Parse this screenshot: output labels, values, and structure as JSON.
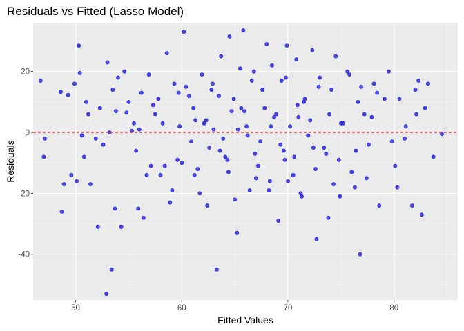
{
  "chart_data": {
    "type": "scatter",
    "title": "Residuals vs Fitted (Lasso Model)",
    "xlabel": "Fitted Values",
    "ylabel": "Residuals",
    "xlim": [
      46,
      86
    ],
    "ylim": [
      -55,
      36
    ],
    "x_ticks": [
      50,
      60,
      70,
      80
    ],
    "y_ticks": [
      -40,
      -20,
      0,
      20
    ],
    "grid": true,
    "reference_line": {
      "y": 0,
      "style": "dashed",
      "color": "#e41a1c"
    },
    "point_color": "#0000ff",
    "panel_background": "#ebebeb",
    "series": [
      {
        "x": [
          46.7,
          47.1,
          47.0,
          48.6,
          48.9,
          48.7,
          49.3,
          49.6,
          49.9,
          50.1,
          50.3,
          50.4,
          50.6,
          50.8,
          51.0,
          51.2,
          51.4,
          51.9,
          52.1,
          52.3,
          52.6,
          52.9,
          53.0,
          53.2,
          53.4,
          53.5,
          53.7,
          53.8,
          54.3,
          54.6,
          55.0,
          55.3,
          55.7,
          56.2,
          56.4,
          56.9,
          57.5,
          58.0,
          58.6,
          58.9,
          59.3,
          59.8,
          60.0,
          60.2,
          60.7,
          61.1,
          61.5,
          61.9,
          62.1,
          62.4,
          62.8,
          63.0,
          63.3,
          63.7,
          64.1,
          64.5,
          64.9,
          65.2,
          65.6,
          65.8,
          66.1,
          66.4,
          66.8,
          67.2,
          67.6,
          68.0,
          68.3,
          68.7,
          69.1,
          69.4,
          69.6,
          69.9,
          70.2,
          70.5,
          70.8,
          71.2,
          71.5,
          71.9,
          72.3,
          72.7,
          73.0,
          73.4,
          73.8,
          74.1,
          74.5,
          74.8,
          75.2,
          75.6,
          76.0,
          76.3,
          76.6,
          76.8,
          77.2,
          77.6,
          78.1,
          78.6,
          79.1,
          79.5,
          80.1,
          80.5,
          81.0,
          81.7,
          82.1,
          82.3,
          82.6,
          82.9,
          83.2,
          83.7,
          84.5,
          82.0,
          81.1,
          80.3,
          78.4,
          77.9,
          56.0,
          57.1,
          58.2,
          59.6,
          61.3,
          62.6,
          64.3,
          65.9,
          67.4,
          68.9,
          70.6,
          72.1,
          73.6,
          75.0,
          76.4,
          54.8,
          55.5,
          56.7,
          57.8,
          59.1,
          60.4,
          61.7,
          63.5,
          65.0,
          66.6,
          68.2,
          69.8,
          71.3,
          72.9,
          74.3,
          75.8,
          77.4,
          60.9,
          62.3,
          63.9,
          64.7,
          66.2,
          67.8,
          69.3,
          70.9,
          72.4,
          73.9,
          58.4,
          59.7,
          61.2,
          62.9,
          64.4,
          65.5,
          67.0,
          68.5,
          70.0,
          71.6,
          63.6,
          65.3,
          66.9,
          68.4,
          69.7,
          71.0,
          72.6,
          54.0,
          55.9,
          57.3,
          74.9,
          76.9,
          79.8
        ],
        "y": [
          17.0,
          -2.0,
          -8.0,
          13.3,
          -17.0,
          -26.0,
          12.3,
          -14.0,
          16.0,
          -16.0,
          28.5,
          19.5,
          -1.0,
          -8.0,
          10.0,
          6.0,
          -17.0,
          -2.0,
          -31.0,
          8.0,
          -4.0,
          -53.0,
          23.0,
          0.0,
          -45.0,
          14.0,
          -25.0,
          7.0,
          -31.0,
          20.0,
          10.0,
          0.5,
          -6.0,
          13.0,
          -28.0,
          19.0,
          6.0,
          -14.0,
          26.0,
          -23.0,
          16.0,
          2.0,
          -10.0,
          33.0,
          12.0,
          8.0,
          -12.0,
          19.0,
          3.0,
          -24.0,
          14.0,
          1.0,
          -45.0,
          25.0,
          -8.0,
          31.5,
          11.0,
          -33.0,
          8.0,
          33.5,
          2.0,
          -19.0,
          20.0,
          -11.0,
          14.0,
          29.0,
          -16.0,
          5.0,
          -29.0,
          17.0,
          -6.0,
          28.5,
          2.0,
          -14.0,
          24.0,
          -20.0,
          10.0,
          -1.0,
          27.0,
          -35.0,
          18.0,
          -5.0,
          -28.0,
          14.0,
          25.0,
          -9.0,
          3.0,
          20.0,
          -13.0,
          -18.0,
          10.0,
          -40.0,
          6.0,
          -4.0,
          16.0,
          -24.0,
          11.0,
          20.0,
          -11.0,
          11.0,
          -2.0,
          -24.0,
          6.0,
          17.0,
          -27.0,
          8.0,
          16.0,
          -8.0,
          -0.5,
          14.0,
          2.0,
          -18.0,
          13.0,
          5.0,
          1.0,
          -11.0,
          3.0,
          -9.0,
          4.0,
          -5.0,
          -9.0,
          7.0,
          -3.0,
          6.0,
          -8.0,
          4.0,
          -7.0,
          3.0,
          -6.0,
          6.5,
          3.0,
          -14.0,
          11.0,
          -19.0,
          15.0,
          -20.0,
          12.0,
          -22.0,
          17.0,
          -19.0,
          18.0,
          -21.0,
          15.0,
          -17.0,
          19.0,
          -15.0,
          -3.0,
          4.0,
          -2.0,
          7.0,
          -1.0,
          8.0,
          -4.0,
          9.0,
          -5.0,
          6.0,
          -11.0,
          13.0,
          -14.0,
          16.0,
          -13.0,
          21.0,
          -15.0,
          22.0,
          -16.0,
          11.0,
          -6.0,
          1.0,
          -7.0,
          2.0,
          -9.0,
          5.0,
          -12.0,
          18.0,
          -25.0,
          9.0,
          -21.0,
          15.0,
          -3.0
        ]
      }
    ]
  }
}
